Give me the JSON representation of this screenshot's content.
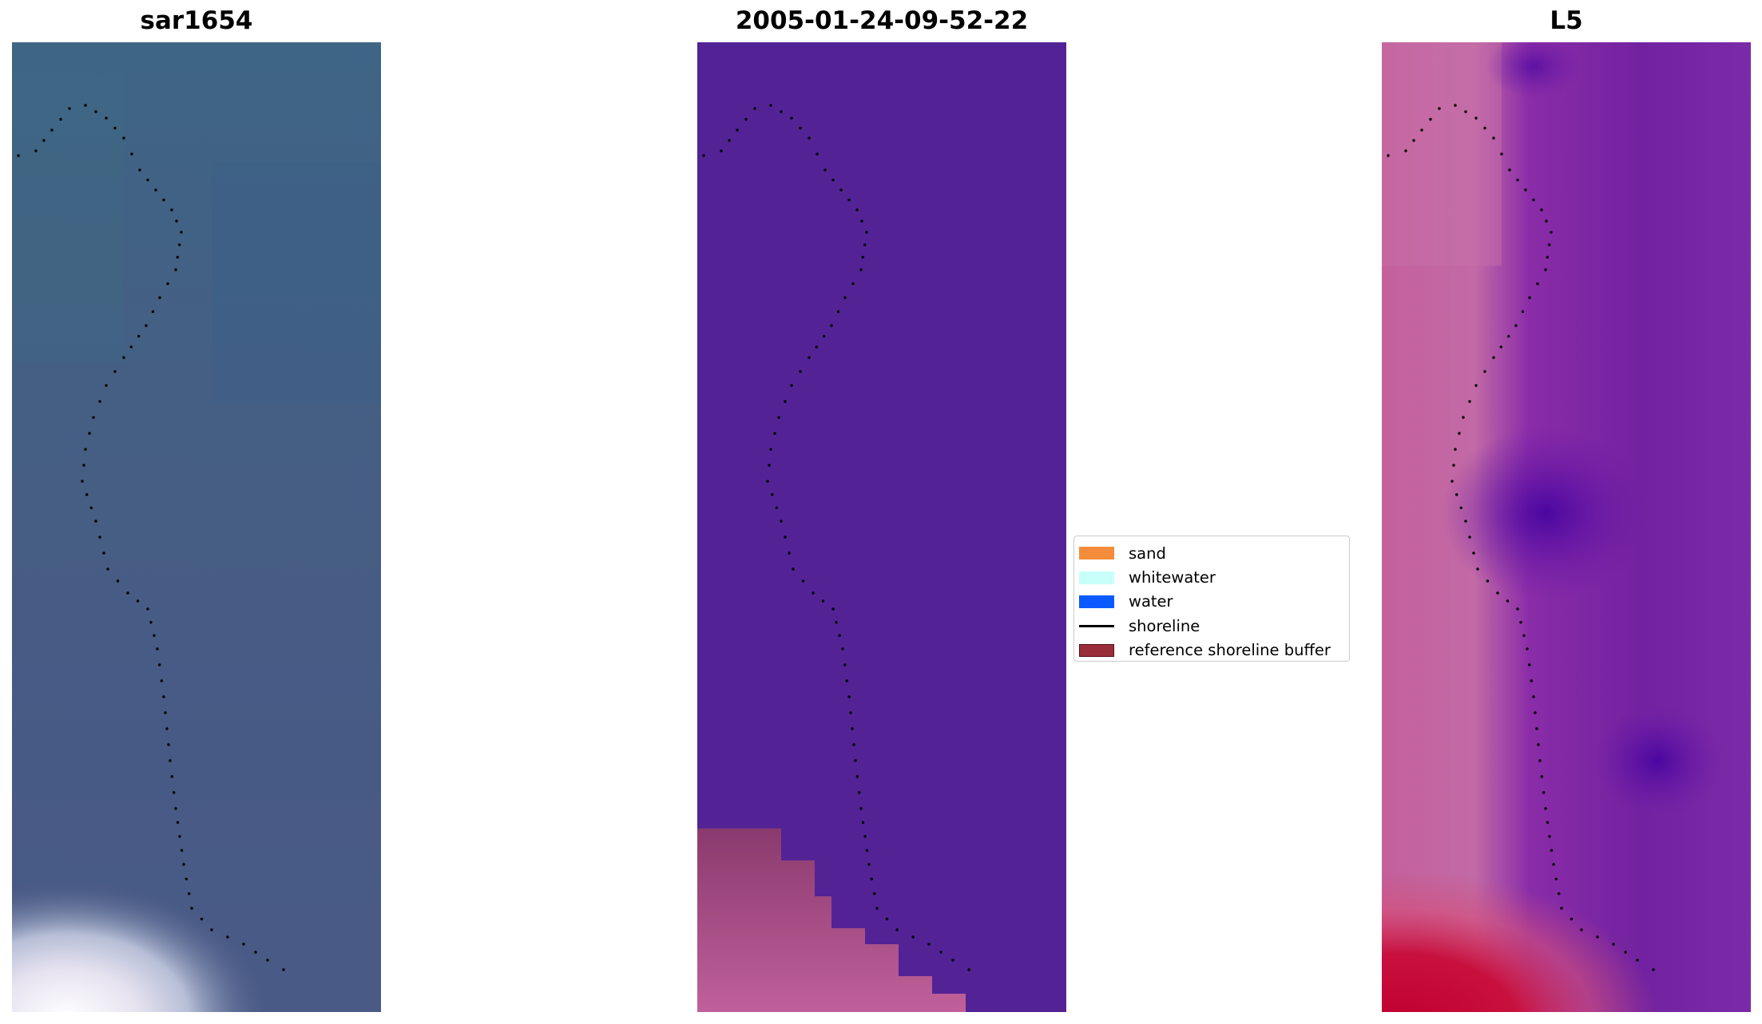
{
  "panels": [
    {
      "title": "sar1654"
    },
    {
      "title": "2005-01-24-09-52-22"
    },
    {
      "title": "L5"
    }
  ],
  "legend": {
    "items": [
      {
        "label": "sand",
        "kind": "patch",
        "color": "#f58c3c"
      },
      {
        "label": "whitewater",
        "kind": "patch",
        "color": "#c8fffa"
      },
      {
        "label": "water",
        "kind": "patch",
        "color": "#0a5aff"
      },
      {
        "label": "shoreline",
        "kind": "line",
        "color": "#000000"
      },
      {
        "label": "reference shoreline buffer",
        "kind": "patch",
        "color": "#9a2d3a",
        "edge": "#5a0f18"
      }
    ]
  },
  "colors": {
    "classification_background": "#532396",
    "shoreline_dots": "#000000"
  }
}
